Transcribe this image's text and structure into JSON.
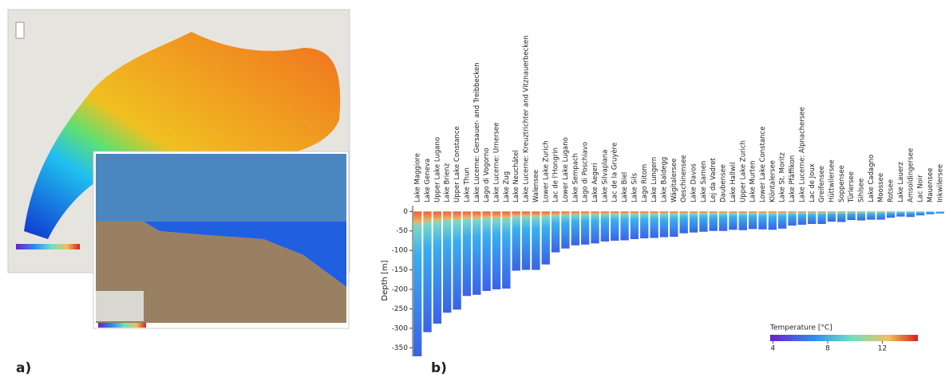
{
  "chart_data": {
    "type": "bar",
    "panel_labels": [
      "a)",
      "b)"
    ],
    "y_label": "Depth [m]",
    "categories": [
      "Lake Maggiore",
      "Lake Geneva",
      "Upper Lake Lugano",
      "Lake Brienz",
      "Upper Lake Constance",
      "Lake Thun",
      "Lake Lucerne: Gersauer- and Treibbecken",
      "Lago di Vogorno",
      "Lake Lucerne: Urnersee",
      "Lake Zug",
      "Lake Neuchâtel",
      "Lake Lucerne: Kreuztrichter and Vitznauerbecken",
      "Walensee",
      "Lower Lake Zurich",
      "Lac de l'Hongrin",
      "Lower Lake Lugano",
      "Lake Sempach",
      "Lago di Poschiavo",
      "Lake Aegeri",
      "Lake Silvaplana",
      "Lac de la Gruyère",
      "Lake Biel",
      "Lake Sils",
      "Lago Ritom",
      "Lake Lungern",
      "Lake Baldegg",
      "Wägitalersee",
      "Oeschinensee",
      "Lake Davos",
      "Lake Sarnen",
      "Lej da Vadret",
      "Daubensee",
      "Lake Hallwil",
      "Upper Lake Zurich",
      "Lake Murten",
      "Lower Lake Constance",
      "Klöntalersee",
      "Lake St. Moritz",
      "Lake Pfäffikon",
      "Lake Lucerne: Alpnachersee",
      "Lac de Joux",
      "Greifensee",
      "Hüttwilersee",
      "Soppensee",
      "Türlersee",
      "Sihlsee",
      "Lake Cadagno",
      "Moossee",
      "Rotsee",
      "Lake Lauerz",
      "Amsoldingersee",
      "Lac Noir",
      "Mauensee",
      "Inkwilersee"
    ],
    "values": [
      -372,
      -310,
      -288,
      -260,
      -252,
      -217,
      -214,
      -204,
      -200,
      -198,
      -152,
      -150,
      -150,
      -136,
      -105,
      -95,
      -87,
      -85,
      -82,
      -77,
      -75,
      -74,
      -71,
      -69,
      -68,
      -66,
      -65,
      -56,
      -54,
      -52,
      -50,
      -50,
      -47,
      -48,
      -45,
      -46,
      -47,
      -44,
      -36,
      -34,
      -32,
      -32,
      -26,
      -27,
      -22,
      -23,
      -21,
      -21,
      -16,
      -13,
      -14,
      -10,
      -7,
      -5
    ],
    "ylim": [
      -372,
      15
    ],
    "yticks": [
      0,
      -50,
      -100,
      -150,
      -200,
      -250,
      -300,
      -350
    ],
    "colorbar": {
      "label": "Temperature [°C]",
      "range": [
        3.8,
        14.6
      ],
      "ticks": [
        4,
        8,
        12
      ]
    }
  }
}
